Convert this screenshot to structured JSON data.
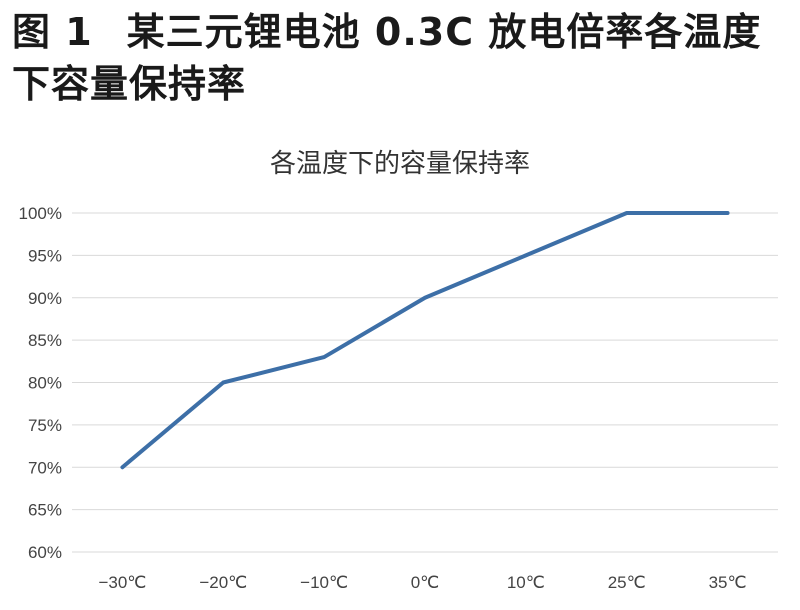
{
  "caption": {
    "number": "图 1",
    "text": "某三元锂电池 0.3C 放电倍率各温度下容量保持率"
  },
  "chart_data": {
    "type": "line",
    "title": "各温度下的容量保持率",
    "xlabel": "",
    "ylabel": "",
    "categories": [
      "−30℃",
      "−20℃",
      "−10℃",
      "0℃",
      "10℃",
      "25℃",
      "35℃"
    ],
    "series": [
      {
        "values": [
          70,
          80,
          83,
          90,
          95,
          100,
          100
        ],
        "color": "#3d6fa7"
      }
    ],
    "ylim": [
      60,
      100
    ],
    "yticks": [
      60,
      65,
      70,
      75,
      80,
      85,
      90,
      95,
      100
    ],
    "ytick_labels": [
      "60%",
      "65%",
      "70%",
      "75%",
      "80%",
      "85%",
      "90%",
      "95%",
      "100%"
    ],
    "grid": true,
    "legend": "none"
  }
}
